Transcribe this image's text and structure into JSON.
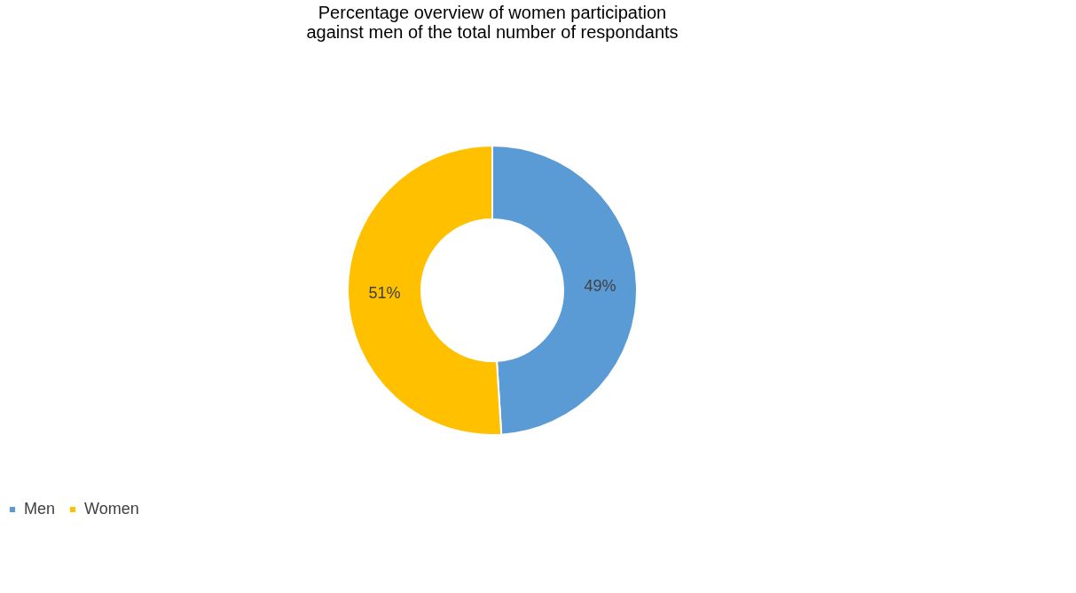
{
  "chart_data": {
    "type": "donut",
    "title": "Percentage overview of women participation\nagainst men of the total number of respondants",
    "categories": [
      "Men",
      "Women"
    ],
    "values": [
      49,
      51
    ],
    "colors": [
      "#5b9bd5",
      "#ffc000"
    ],
    "value_labels": [
      "49%",
      "51%"
    ],
    "legend": "bottom"
  }
}
